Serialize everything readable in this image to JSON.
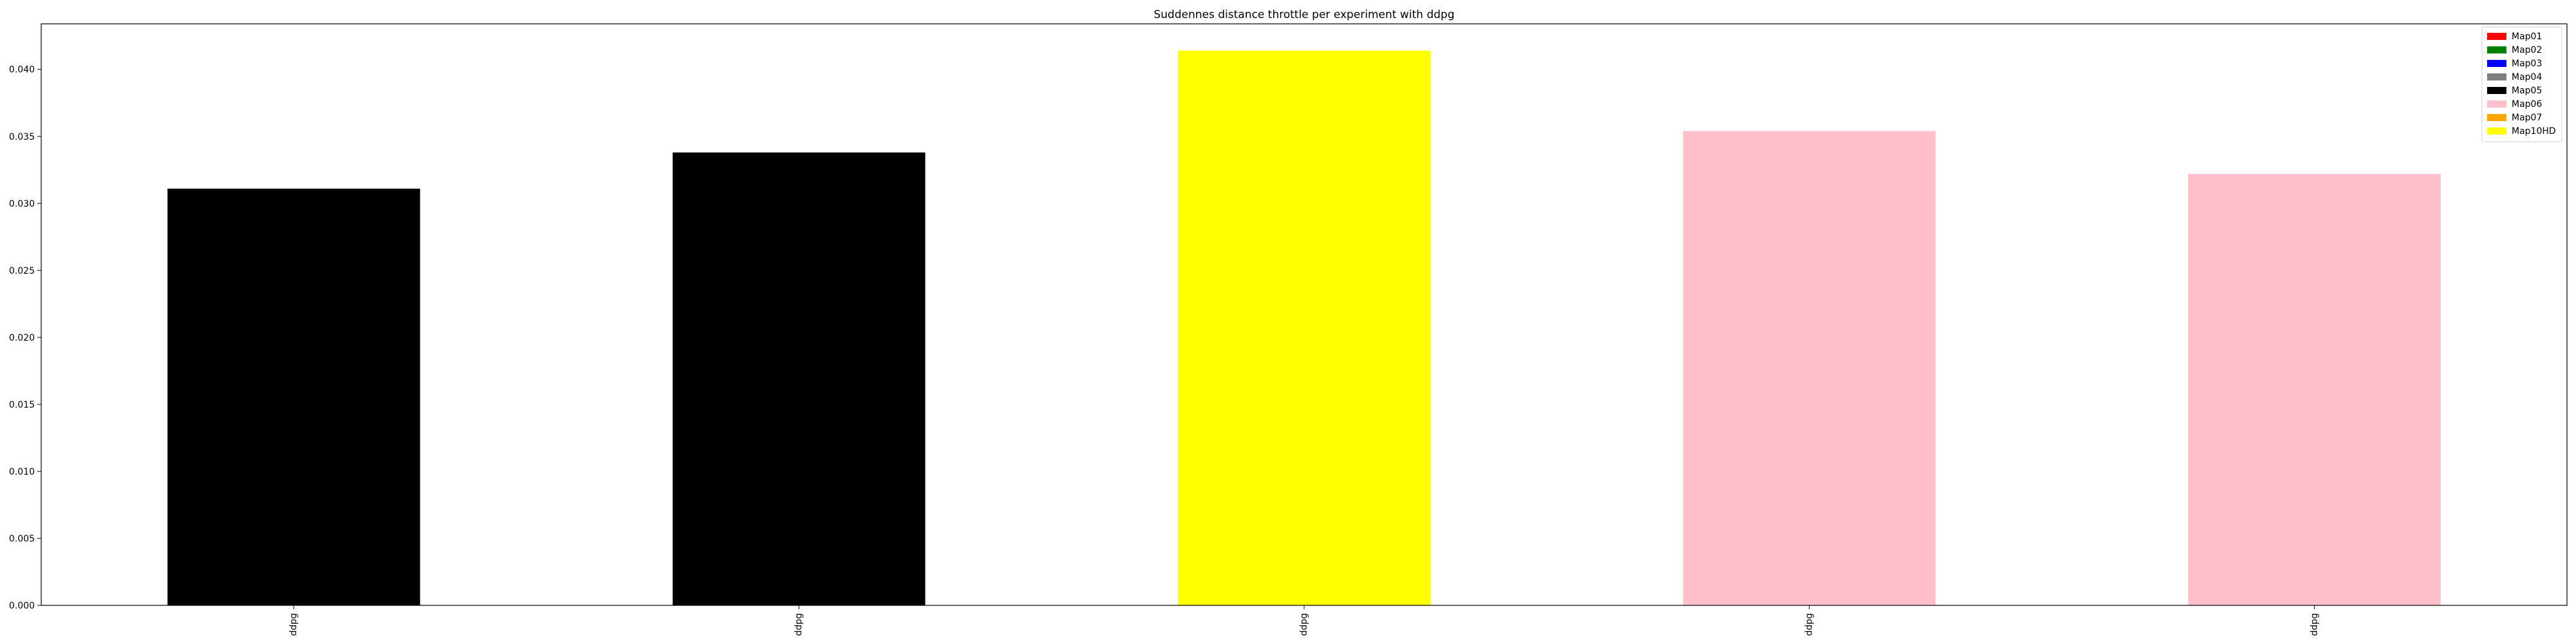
{
  "chart_data": {
    "type": "bar",
    "title": "Suddennes distance throttle per experiment with ddpg",
    "xlabel": "",
    "ylabel": "",
    "categories": [
      "ddpg",
      "ddpg",
      "ddpg",
      "ddpg",
      "ddpg"
    ],
    "values": [
      0.0311,
      0.0338,
      0.0414,
      0.0354,
      0.0322
    ],
    "bar_colors": [
      "#000000",
      "#000000",
      "#ffff00",
      "#ffc0cb",
      "#ffc0cb"
    ],
    "ylim": [
      0,
      0.0434
    ],
    "yticks": [
      0.0,
      0.005,
      0.01,
      0.015,
      0.02,
      0.025,
      0.03,
      0.035,
      0.04
    ],
    "ytick_labels": [
      "0.000",
      "0.005",
      "0.010",
      "0.015",
      "0.020",
      "0.025",
      "0.030",
      "0.035",
      "0.040"
    ],
    "grid": false,
    "legend": {
      "position": "top-right",
      "entries": [
        {
          "label": "Map01",
          "color": "#ff0000"
        },
        {
          "label": "Map02",
          "color": "#008000"
        },
        {
          "label": "Map03",
          "color": "#0000ff"
        },
        {
          "label": "Map04",
          "color": "#808080"
        },
        {
          "label": "Map05",
          "color": "#000000"
        },
        {
          "label": "Map06",
          "color": "#ffc0cb"
        },
        {
          "label": "Map07",
          "color": "#ffa500"
        },
        {
          "label": "Map10HD",
          "color": "#ffff00"
        }
      ]
    }
  }
}
